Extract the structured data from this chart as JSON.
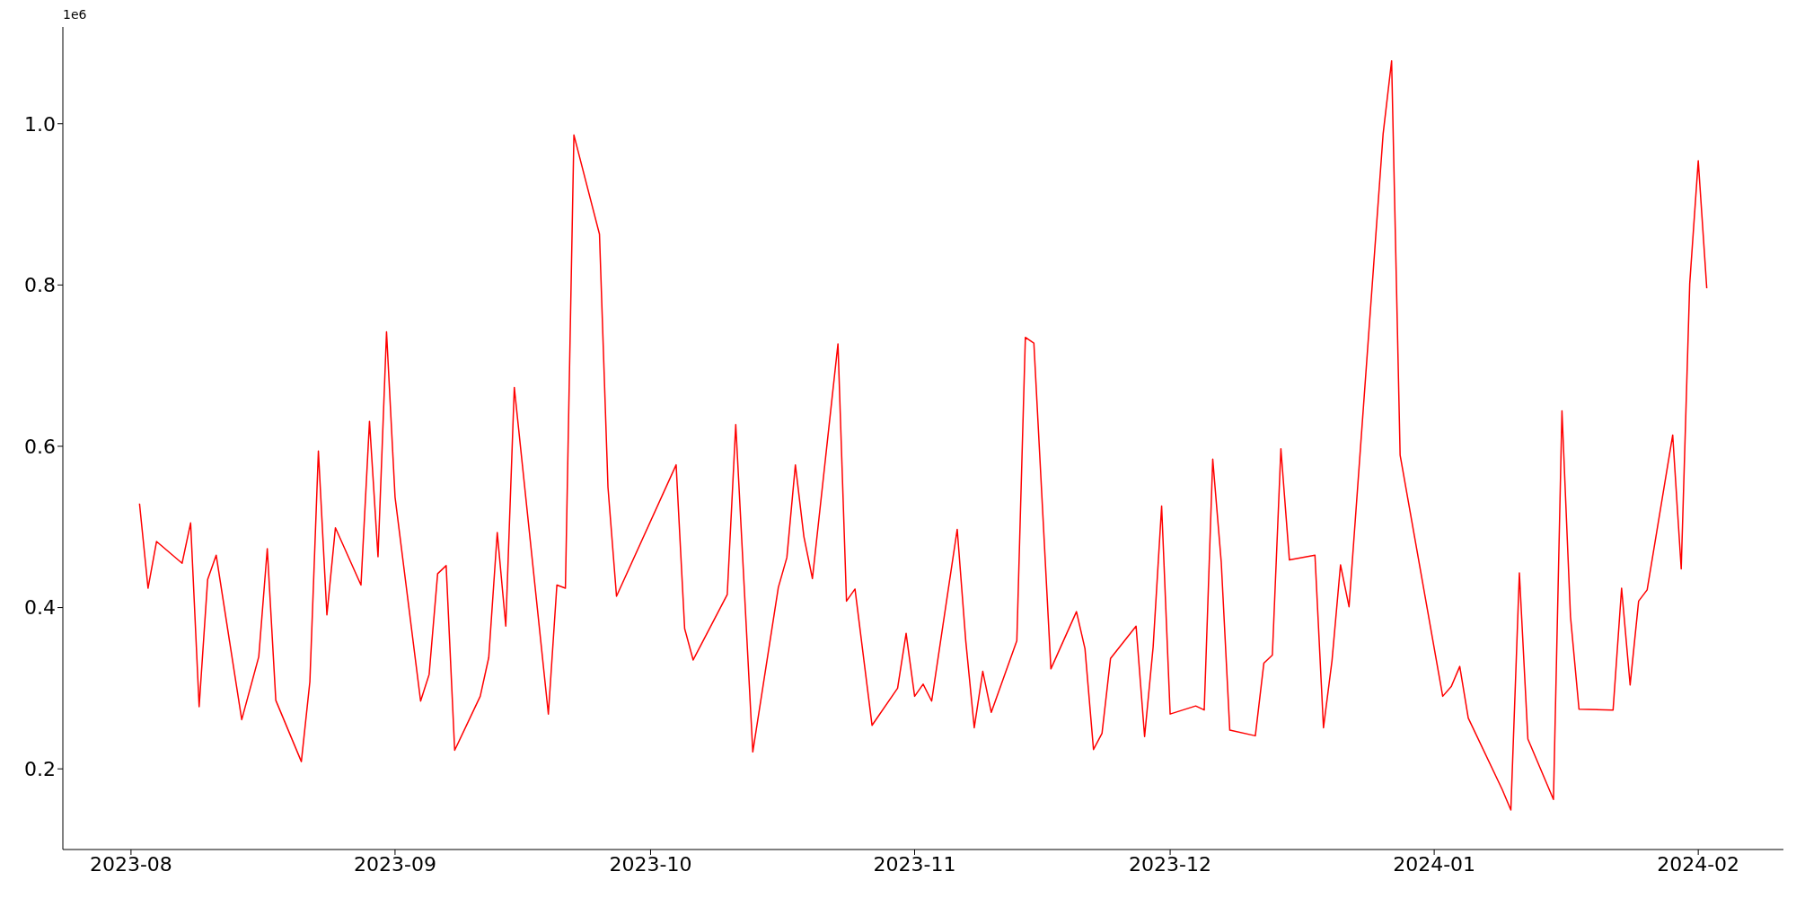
{
  "chart_data": {
    "type": "line",
    "color": "#ff0000",
    "annotations": [
      "1e6"
    ],
    "x": [
      "2023-08-02",
      "2023-08-03",
      "2023-08-04",
      "2023-08-07",
      "2023-08-08",
      "2023-08-09",
      "2023-08-10",
      "2023-08-11",
      "2023-08-14",
      "2023-08-16",
      "2023-08-17",
      "2023-08-18",
      "2023-08-21",
      "2023-08-22",
      "2023-08-23",
      "2023-08-24",
      "2023-08-25",
      "2023-08-28",
      "2023-08-29",
      "2023-08-30",
      "2023-08-31",
      "2023-09-01",
      "2023-09-04",
      "2023-09-05",
      "2023-09-06",
      "2023-09-07",
      "2023-09-08",
      "2023-09-11",
      "2023-09-12",
      "2023-09-13",
      "2023-09-14",
      "2023-09-15",
      "2023-09-19",
      "2023-09-20",
      "2023-09-21",
      "2023-09-22",
      "2023-09-25",
      "2023-09-26",
      "2023-09-27",
      "2023-10-04",
      "2023-10-05",
      "2023-10-06",
      "2023-10-10",
      "2023-10-11",
      "2023-10-13",
      "2023-10-16",
      "2023-10-17",
      "2023-10-18",
      "2023-10-19",
      "2023-10-20",
      "2023-10-23",
      "2023-10-24",
      "2023-10-25",
      "2023-10-27",
      "2023-10-30",
      "2023-10-31",
      "2023-11-01",
      "2023-11-02",
      "2023-11-03",
      "2023-11-06",
      "2023-11-07",
      "2023-11-08",
      "2023-11-09",
      "2023-11-10",
      "2023-11-13",
      "2023-11-14",
      "2023-11-15",
      "2023-11-17",
      "2023-11-20",
      "2023-11-21",
      "2023-11-22",
      "2023-11-23",
      "2023-11-24",
      "2023-11-27",
      "2023-11-28",
      "2023-11-29",
      "2023-11-30",
      "2023-12-01",
      "2023-12-04",
      "2023-12-05",
      "2023-12-06",
      "2023-12-07",
      "2023-12-08",
      "2023-12-11",
      "2023-12-12",
      "2023-12-13",
      "2023-12-14",
      "2023-12-15",
      "2023-12-18",
      "2023-12-19",
      "2023-12-20",
      "2023-12-21",
      "2023-12-22",
      "2023-12-26",
      "2023-12-27",
      "2023-12-28",
      "2024-01-02",
      "2024-01-03",
      "2024-01-04",
      "2024-01-05",
      "2024-01-09",
      "2024-01-10",
      "2024-01-11",
      "2024-01-12",
      "2024-01-15",
      "2024-01-16",
      "2024-01-17",
      "2024-01-18",
      "2024-01-22",
      "2024-01-23",
      "2024-01-24",
      "2024-01-25",
      "2024-01-26",
      "2024-01-29",
      "2024-01-30",
      "2024-01-31",
      "2024-02-01",
      "2024-02-02"
    ],
    "values": [
      0.529,
      0.424,
      0.482,
      0.455,
      0.505,
      0.277,
      0.435,
      0.465,
      0.261,
      0.339,
      0.473,
      0.285,
      0.209,
      0.308,
      0.594,
      0.391,
      0.499,
      0.428,
      0.631,
      0.463,
      0.742,
      0.537,
      0.284,
      0.317,
      0.442,
      0.452,
      0.223,
      0.29,
      0.338,
      0.493,
      0.377,
      0.673,
      0.268,
      0.428,
      0.424,
      0.986,
      0.863,
      0.549,
      0.414,
      0.577,
      0.374,
      0.335,
      0.416,
      0.627,
      0.221,
      0.425,
      0.462,
      0.577,
      0.488,
      0.436,
      0.727,
      0.408,
      0.423,
      0.254,
      0.3,
      0.368,
      0.29,
      0.305,
      0.284,
      0.497,
      0.359,
      0.251,
      0.321,
      0.27,
      0.359,
      0.735,
      0.728,
      0.324,
      0.395,
      0.349,
      0.224,
      0.244,
      0.337,
      0.377,
      0.24,
      0.351,
      0.526,
      0.268,
      0.278,
      0.273,
      0.584,
      0.456,
      0.248,
      0.241,
      0.331,
      0.341,
      0.597,
      0.459,
      0.465,
      0.251,
      0.334,
      0.453,
      0.401,
      0.987,
      1.078,
      0.589,
      0.29,
      0.302,
      0.327,
      0.263,
      0.174,
      0.149,
      0.443,
      0.237,
      0.162,
      0.644,
      0.389,
      0.274,
      0.273,
      0.424,
      0.304,
      0.408,
      0.422,
      0.614,
      0.448,
      0.802,
      0.954,
      0.796
    ],
    "xlim": [
      "2023-07-24",
      "2024-02-11"
    ],
    "xticks": [
      {
        "value": "2023-08-01",
        "label": "2023-08"
      },
      {
        "value": "2023-09-01",
        "label": "2023-09"
      },
      {
        "value": "2023-10-01",
        "label": "2023-10"
      },
      {
        "value": "2023-11-01",
        "label": "2023-11"
      },
      {
        "value": "2023-12-01",
        "label": "2023-12"
      },
      {
        "value": "2024-01-01",
        "label": "2024-01"
      },
      {
        "value": "2024-02-01",
        "label": "2024-02"
      }
    ],
    "ylim": [
      0.1,
      1.12
    ],
    "yticks": [
      0.2,
      0.4,
      0.6,
      0.8,
      {
        "value": 1,
        "label": "1.0"
      }
    ]
  }
}
